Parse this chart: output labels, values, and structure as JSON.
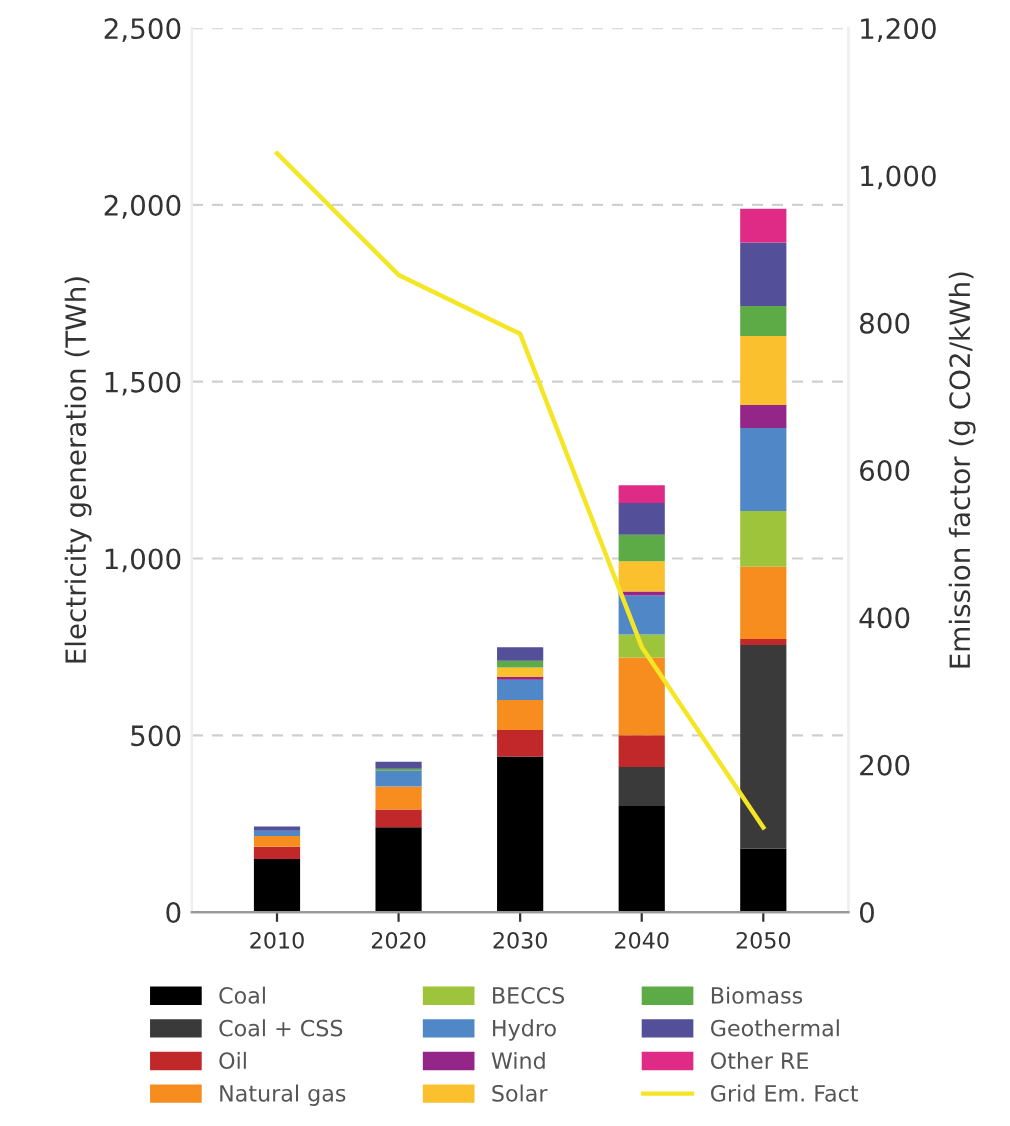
{
  "chart_data": {
    "type": "bar",
    "stacked": true,
    "categories": [
      "2010",
      "2020",
      "2030",
      "2040",
      "2050"
    ],
    "ylabel": "Electricity generation (TWh)",
    "y2label": "Emission factor (g CO2/kWh)",
    "ylim": [
      0,
      2500
    ],
    "yticks": [
      0,
      500,
      {
        "value": 1000,
        "label": "1,000"
      },
      {
        "value": 1500,
        "label": "1,500"
      },
      {
        "value": 2000,
        "label": "2,000"
      },
      {
        "value": 2500,
        "label": "2,500"
      }
    ],
    "y2lim": [
      0,
      1200
    ],
    "y2ticks": [
      0,
      200,
      400,
      600,
      800,
      {
        "value": 1000,
        "label": "1,000"
      },
      {
        "value": 1200,
        "label": "1,200"
      }
    ],
    "grid": "y",
    "legend": "bottom",
    "series": [
      {
        "name": "Coal",
        "color": "#000000",
        "values": [
          150,
          240,
          440,
          300,
          180
        ]
      },
      {
        "name": "Coal + CSS",
        "color": "#3a3a3a",
        "values": [
          null,
          null,
          null,
          110,
          575
        ]
      },
      {
        "name": "Oil",
        "color": "#c0282a",
        "values": [
          35,
          50,
          75,
          90,
          17
        ]
      },
      {
        "name": "Natural gas",
        "color": "#f68d1e",
        "values": [
          30,
          65,
          85,
          220,
          205
        ]
      },
      {
        "name": "BECCS",
        "color": "#9dc43a",
        "values": [
          null,
          null,
          null,
          65,
          157
        ]
      },
      {
        "name": "Hydro",
        "color": "#5087c7",
        "values": [
          15,
          45,
          57,
          110,
          235
        ]
      },
      {
        "name": "Wind",
        "color": "#942589",
        "values": [
          null,
          null,
          8,
          12,
          65
        ]
      },
      {
        "name": "Solar",
        "color": "#fbc02d",
        "values": [
          null,
          null,
          27,
          85,
          195
        ]
      },
      {
        "name": "Biomass",
        "color": "#5dab47",
        "values": [
          null,
          5,
          19,
          75,
          85
        ]
      },
      {
        "name": "Geothermal",
        "color": "#534f98",
        "values": [
          12,
          20,
          38,
          90,
          180
        ]
      },
      {
        "name": "Other RE",
        "color": "#df2a86",
        "values": [
          null,
          null,
          null,
          50,
          95
        ]
      },
      {
        "name": "Grid Em. Fact",
        "type": "line",
        "axis": "y2",
        "color": "#f5e625",
        "values": [
          1030,
          865,
          785,
          360,
          115
        ]
      }
    ]
  }
}
